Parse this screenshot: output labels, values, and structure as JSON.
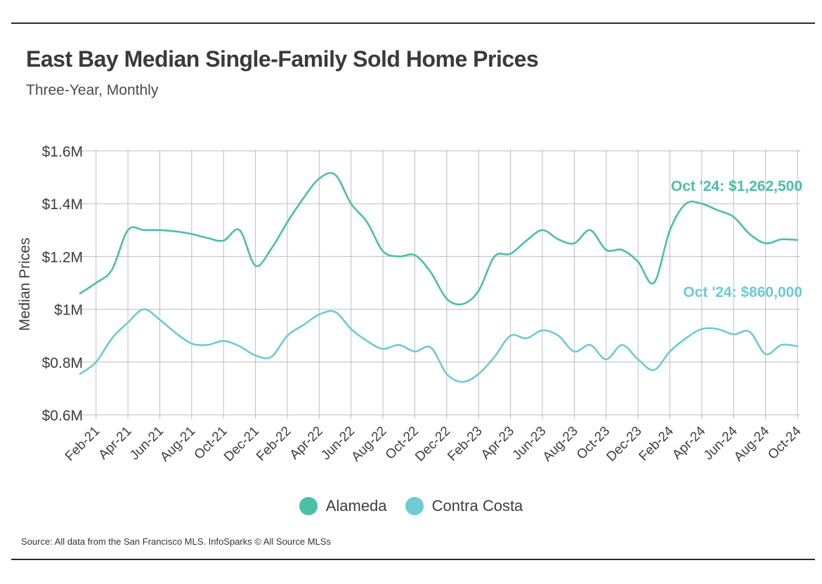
{
  "title": "East Bay Median Single-Family Sold Home Prices",
  "subtitle": "Three-Year, Monthly",
  "source": "Source:  All data from the San Francisco MLS. InfoSparks © All Source MLSs",
  "colors": {
    "alameda": "#4bbfa8",
    "contra_costa": "#6ccbd3",
    "grid": "#bdbdbd",
    "axis_text": "#3d3d3d"
  },
  "chart_data": {
    "type": "line",
    "ylabel": "Median Prices",
    "xlabel": "",
    "ylim": [
      600000,
      1600000
    ],
    "y_ticks": [
      600000,
      800000,
      1000000,
      1200000,
      1400000,
      1600000
    ],
    "y_tick_labels": [
      "$0.6M",
      "$0.8M",
      "$1M",
      "$1.2M",
      "$1.4M",
      "$1.6M"
    ],
    "x": [
      "Jan-21",
      "Feb-21",
      "Mar-21",
      "Apr-21",
      "May-21",
      "Jun-21",
      "Jul-21",
      "Aug-21",
      "Sep-21",
      "Oct-21",
      "Nov-21",
      "Dec-21",
      "Jan-22",
      "Feb-22",
      "Mar-22",
      "Apr-22",
      "May-22",
      "Jun-22",
      "Jul-22",
      "Aug-22",
      "Sep-22",
      "Oct-22",
      "Nov-22",
      "Dec-22",
      "Jan-23",
      "Feb-23",
      "Mar-23",
      "Apr-23",
      "May-23",
      "Jun-23",
      "Jul-23",
      "Aug-23",
      "Sep-23",
      "Oct-23",
      "Nov-23",
      "Dec-23",
      "Jan-24",
      "Feb-24",
      "Mar-24",
      "Apr-24",
      "May-24",
      "Jun-24",
      "Jul-24",
      "Aug-24",
      "Sep-24",
      "Oct-24"
    ],
    "x_tick_labels": [
      "Feb-21",
      "Apr-21",
      "Jun-21",
      "Aug-21",
      "Oct-21",
      "Dec-21",
      "Feb-22",
      "Apr-22",
      "Jun-22",
      "Aug-22",
      "Oct-22",
      "Dec-22",
      "Feb-23",
      "Apr-23",
      "Jun-23",
      "Aug-23",
      "Oct-23",
      "Dec-23",
      "Feb-24",
      "Apr-24",
      "Jun-24",
      "Aug-24",
      "Oct-24"
    ],
    "series": [
      {
        "name": "Alameda",
        "color": "#4bbfa8",
        "values": [
          1060000,
          1100000,
          1150000,
          1300000,
          1300000,
          1300000,
          1295000,
          1285000,
          1270000,
          1260000,
          1300000,
          1165000,
          1230000,
          1330000,
          1420000,
          1495000,
          1510000,
          1400000,
          1330000,
          1220000,
          1200000,
          1205000,
          1140000,
          1040000,
          1020000,
          1070000,
          1200000,
          1210000,
          1260000,
          1300000,
          1265000,
          1250000,
          1300000,
          1225000,
          1225000,
          1180000,
          1100000,
          1300000,
          1400000,
          1400000,
          1375000,
          1350000,
          1285000,
          1250000,
          1265000,
          1262500
        ]
      },
      {
        "name": "Contra Costa",
        "color": "#6ccbd3",
        "values": [
          755000,
          800000,
          890000,
          950000,
          1000000,
          960000,
          910000,
          870000,
          865000,
          880000,
          860000,
          825000,
          820000,
          900000,
          940000,
          980000,
          990000,
          925000,
          880000,
          850000,
          865000,
          840000,
          855000,
          755000,
          725000,
          755000,
          820000,
          900000,
          890000,
          920000,
          900000,
          840000,
          865000,
          810000,
          865000,
          810000,
          770000,
          840000,
          890000,
          925000,
          925000,
          905000,
          915000,
          830000,
          865000,
          860000
        ]
      }
    ],
    "annotations": [
      {
        "series": "Alameda",
        "text": "Oct '24: $1,262,500"
      },
      {
        "series": "Contra Costa",
        "text": "Oct '24: $860,000"
      }
    ],
    "grid": true,
    "legend_position": "bottom"
  }
}
